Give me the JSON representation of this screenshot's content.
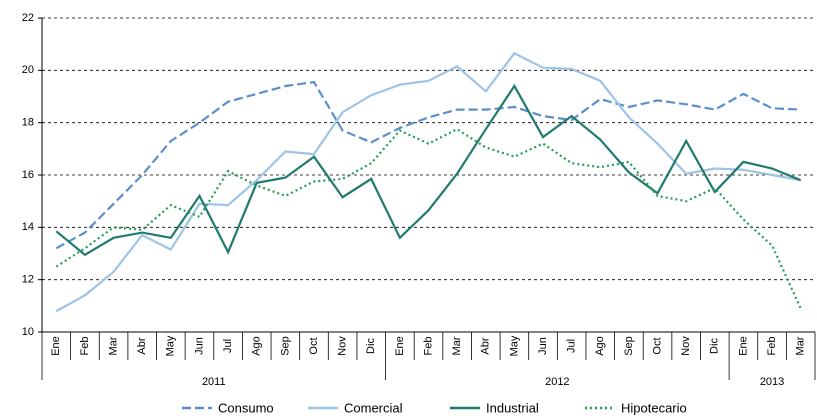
{
  "chart_data": {
    "type": "line",
    "categories": [
      "Ene",
      "Feb",
      "Mar",
      "Abr",
      "May",
      "Jun",
      "Jul",
      "Ago",
      "Sep",
      "Oct",
      "Nov",
      "Dic",
      "Ene",
      "Feb",
      "Mar",
      "Abr",
      "May",
      "Jun",
      "Jul",
      "Ago",
      "Sep",
      "Oct",
      "Nov",
      "Dic",
      "Ene",
      "Feb",
      "Mar"
    ],
    "x_groups": [
      "2011",
      "2012",
      "2013"
    ],
    "series": [
      {
        "name": "Consumo",
        "color": "#5b8fcb",
        "dash": "dashed",
        "values": [
          13.2,
          13.8,
          14.9,
          16.0,
          17.3,
          18.0,
          18.8,
          19.1,
          19.4,
          19.55,
          17.7,
          17.25,
          17.8,
          18.2,
          18.5,
          18.5,
          18.6,
          18.25,
          18.1,
          18.9,
          18.6,
          18.85,
          18.7,
          18.5,
          19.1,
          18.55,
          18.5
        ]
      },
      {
        "name": "Comercial",
        "color": "#9dc3e6",
        "dash": "solid",
        "values": [
          10.8,
          11.4,
          12.3,
          13.7,
          13.15,
          14.9,
          14.85,
          15.8,
          16.9,
          16.8,
          18.4,
          19.05,
          19.45,
          19.6,
          20.15,
          19.2,
          20.65,
          20.1,
          20.05,
          19.6,
          18.2,
          17.2,
          16.05,
          16.25,
          16.2,
          16.0,
          15.8
        ]
      },
      {
        "name": "Industrial",
        "color": "#217a6e",
        "dash": "solid",
        "values": [
          13.85,
          12.95,
          13.6,
          13.8,
          13.6,
          15.2,
          13.05,
          15.7,
          15.9,
          16.7,
          15.15,
          15.85,
          13.6,
          14.65,
          16.05,
          17.75,
          19.4,
          17.45,
          18.25,
          17.35,
          16.1,
          15.3,
          17.3,
          15.35,
          16.5,
          16.25,
          15.8
        ]
      },
      {
        "name": "Hipotecario",
        "color": "#1fa050",
        "dash": "dotted",
        "values": [
          12.5,
          13.2,
          14.0,
          13.9,
          14.85,
          14.4,
          16.15,
          15.6,
          15.2,
          15.75,
          15.85,
          16.45,
          17.7,
          17.2,
          17.75,
          17.05,
          16.7,
          17.2,
          16.45,
          16.3,
          16.5,
          15.2,
          15.0,
          15.5,
          14.3,
          13.3,
          10.9
        ]
      }
    ],
    "ylim": [
      10,
      22
    ],
    "yticks": [
      10,
      12,
      14,
      16,
      18,
      20,
      22
    ],
    "grid": true,
    "legend": "bottom"
  }
}
